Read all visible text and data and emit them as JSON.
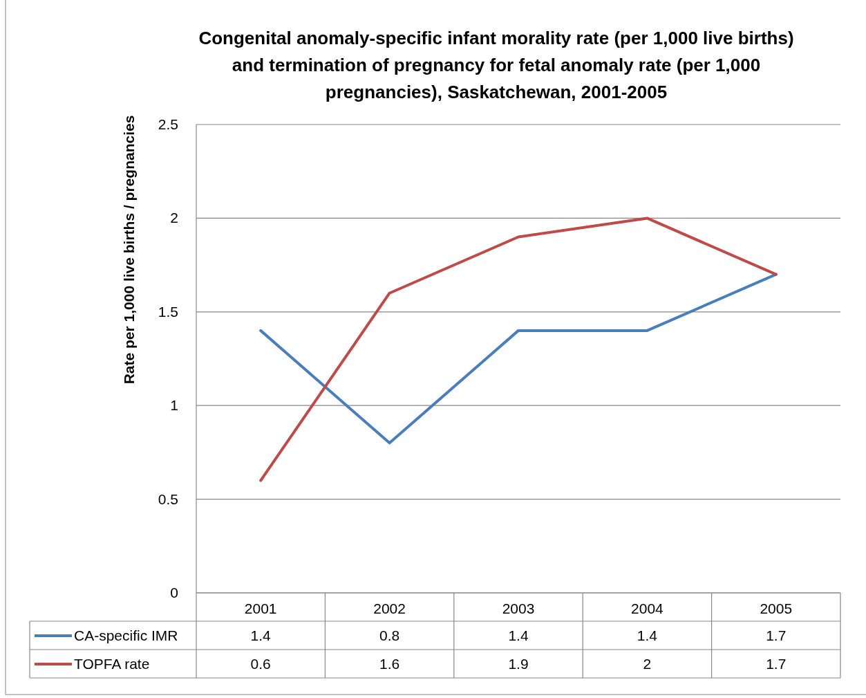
{
  "chart_data": {
    "type": "line",
    "title": "Congenital anomaly-specific infant morality rate (per 1,000 live births)\nand termination of pregnancy for fetal anomaly rate (per 1,000\npregnancies), Saskatchewan, 2001-2005",
    "ylabel": "Rate per 1,000 live births / pregnancies",
    "categories": [
      "2001",
      "2002",
      "2003",
      "2004",
      "2005"
    ],
    "series": [
      {
        "name": "CA-specific IMR",
        "color": "#4a7ebb",
        "values": [
          1.4,
          0.8,
          1.4,
          1.4,
          1.7
        ]
      },
      {
        "name": "TOPFA rate",
        "color": "#be4b48",
        "values": [
          0.6,
          1.6,
          1.9,
          2,
          1.7
        ]
      }
    ],
    "ylim": [
      0,
      2.5
    ],
    "yticks": [
      0,
      0.5,
      1,
      1.5,
      2,
      2.5
    ],
    "grid": "y",
    "legend": "bottom",
    "data_labels": true,
    "marker": "none",
    "line_style": "solid"
  }
}
